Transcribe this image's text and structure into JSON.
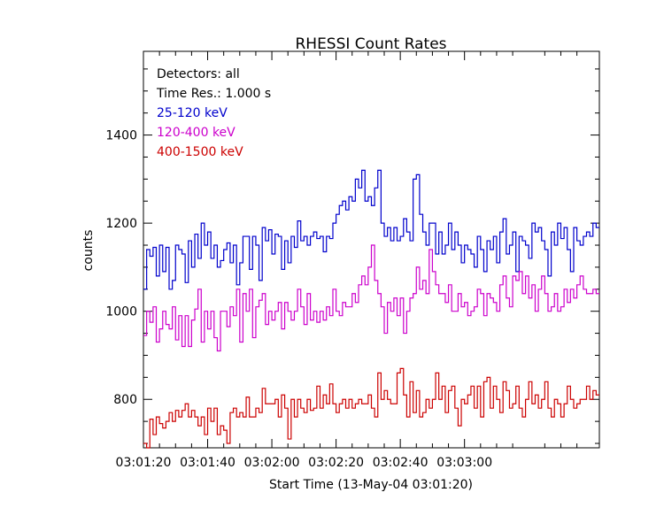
{
  "chart_data": {
    "type": "line",
    "title": "RHESSI Count Rates",
    "xlabel": "Start Time (13-May-04 03:01:20)",
    "ylabel": "counts",
    "x_unit": "seconds after 03:01:20",
    "xlim": [
      0,
      142
    ],
    "ylim": [
      690,
      1590
    ],
    "x_ticks": [
      0,
      20,
      40,
      60,
      80,
      100
    ],
    "x_tick_labels": [
      "03:01:20",
      "03:01:40",
      "03:02:00",
      "03:02:20",
      "03:02:40",
      "03:03:00"
    ],
    "y_ticks": [
      800,
      1000,
      1200,
      1400
    ],
    "y_tick_labels": [
      "800",
      "1000",
      "1200",
      "1400"
    ],
    "step": 1,
    "grid": false,
    "legend_position": "top-left",
    "annotations": [
      "Detectors: all",
      "Time Res.: 1.000 s"
    ],
    "series": [
      {
        "name": "25-120 keV",
        "color": "#0000cc",
        "values": [
          1050,
          1140,
          1125,
          1145,
          1080,
          1150,
          1090,
          1145,
          1050,
          1070,
          1150,
          1140,
          1130,
          1065,
          1160,
          1100,
          1175,
          1120,
          1200,
          1150,
          1180,
          1120,
          1150,
          1100,
          1115,
          1140,
          1155,
          1110,
          1150,
          1060,
          1110,
          1170,
          1170,
          1095,
          1170,
          1150,
          1070,
          1190,
          1160,
          1185,
          1130,
          1175,
          1170,
          1095,
          1160,
          1110,
          1170,
          1145,
          1205,
          1160,
          1170,
          1150,
          1170,
          1180,
          1165,
          1170,
          1135,
          1170,
          1165,
          1200,
          1220,
          1240,
          1250,
          1230,
          1260,
          1250,
          1300,
          1280,
          1320,
          1250,
          1260,
          1240,
          1280,
          1320,
          1200,
          1170,
          1190,
          1160,
          1190,
          1160,
          1170,
          1210,
          1180,
          1160,
          1300,
          1310,
          1220,
          1180,
          1150,
          1200,
          1200,
          1130,
          1180,
          1130,
          1150,
          1200,
          1140,
          1180,
          1150,
          1110,
          1150,
          1140,
          1130,
          1100,
          1170,
          1140,
          1090,
          1160,
          1140,
          1170,
          1110,
          1180,
          1210,
          1130,
          1150,
          1180,
          1090,
          1170,
          1160,
          1150,
          1120,
          1200,
          1180,
          1190,
          1160,
          1140,
          1080,
          1180,
          1150,
          1200,
          1165,
          1190,
          1140,
          1090,
          1190,
          1160,
          1150,
          1170,
          1180,
          1170,
          1200,
          1190
        ],
        "values_visible_count": 142
      },
      {
        "name": "120-400 keV",
        "color": "#cc00cc",
        "values": [
          945,
          1000,
          975,
          1010,
          930,
          960,
          1000,
          970,
          960,
          1010,
          935,
          990,
          920,
          990,
          920,
          980,
          1005,
          1050,
          930,
          1000,
          960,
          1000,
          940,
          910,
          1000,
          1000,
          965,
          1010,
          990,
          1050,
          930,
          1040,
          1000,
          1050,
          940,
          1010,
          1025,
          1040,
          970,
          1000,
          980,
          1000,
          1020,
          960,
          1020,
          1000,
          980,
          1000,
          1050,
          1010,
          970,
          1040,
          980,
          1000,
          975,
          1000,
          980,
          1010,
          990,
          1050,
          1000,
          990,
          1020,
          1010,
          1010,
          1040,
          1020,
          1060,
          1080,
          1060,
          1100,
          1150,
          1070,
          1040,
          1010,
          950,
          1020,
          1000,
          1030,
          990,
          1030,
          950,
          1000,
          1030,
          1040,
          1100,
          1050,
          1070,
          1040,
          1140,
          1090,
          1060,
          1040,
          1040,
          1020,
          1060,
          1000,
          1000,
          1040,
          1010,
          1020,
          990,
          1000,
          1010,
          1050,
          1040,
          990,
          1040,
          1030,
          1020,
          1000,
          1060,
          1080,
          1030,
          1010,
          1080,
          1070,
          1090,
          1040,
          1080,
          1030,
          1060,
          1000,
          1050,
          1080,
          1040,
          1000,
          1010,
          1040,
          1000,
          1010,
          1050,
          1020,
          1050,
          1030,
          1060,
          1080,
          1050,
          1040,
          1040,
          1050,
          1040
        ]
      },
      {
        "name": "400-1500 keV",
        "color": "#cc0000",
        "values": [
          700,
          690,
          755,
          720,
          760,
          745,
          735,
          750,
          770,
          750,
          775,
          760,
          775,
          790,
          760,
          775,
          760,
          740,
          760,
          720,
          780,
          750,
          780,
          720,
          740,
          730,
          700,
          770,
          780,
          760,
          770,
          760,
          805,
          760,
          760,
          780,
          770,
          825,
          790,
          790,
          790,
          800,
          760,
          810,
          780,
          710,
          800,
          760,
          800,
          780,
          770,
          800,
          775,
          780,
          830,
          780,
          810,
          790,
          835,
          790,
          770,
          790,
          800,
          780,
          800,
          780,
          790,
          800,
          790,
          790,
          810,
          780,
          760,
          860,
          800,
          820,
          800,
          790,
          790,
          860,
          870,
          810,
          760,
          840,
          770,
          820,
          760,
          770,
          800,
          780,
          800,
          860,
          800,
          830,
          770,
          820,
          830,
          780,
          740,
          800,
          790,
          810,
          830,
          780,
          830,
          760,
          840,
          850,
          780,
          830,
          800,
          770,
          840,
          820,
          780,
          790,
          830,
          780,
          760,
          800,
          840,
          790,
          810,
          780,
          800,
          840,
          780,
          760,
          800,
          790,
          760,
          790,
          830,
          800,
          780,
          790,
          800,
          800,
          830,
          800,
          820,
          810
        ]
      }
    ]
  }
}
